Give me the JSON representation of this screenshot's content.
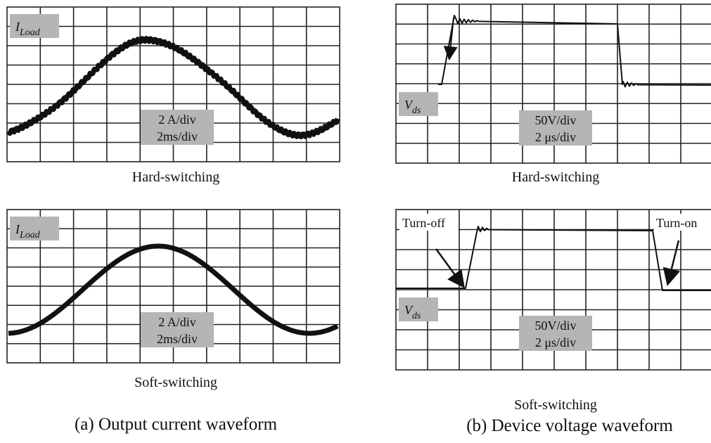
{
  "panels": [
    {
      "signal": {
        "symbol": "I",
        "subscript": "Load"
      },
      "scale": [
        "2 A/div",
        "2ms/div"
      ],
      "caption": "Hard-switching"
    },
    {
      "signal": {
        "symbol": "I",
        "subscript": "Load"
      },
      "scale": [
        "2 A/div",
        "2ms/div"
      ],
      "caption": "Soft-switching"
    },
    {
      "signal": {
        "symbol": "V",
        "subscript": "ds"
      },
      "scale": [
        "50V/div",
        "2 μs/div"
      ],
      "caption": "Hard-switching"
    },
    {
      "signal": {
        "symbol": "V",
        "subscript": "ds"
      },
      "scale": [
        "50V/div",
        "2 μs/div"
      ],
      "caption": "Soft-switching",
      "annotations": [
        "Turn-off",
        "Turn-on"
      ]
    }
  ],
  "figure_captions": [
    "(a) Output current waveform",
    "(b) Device voltage waveform"
  ]
}
